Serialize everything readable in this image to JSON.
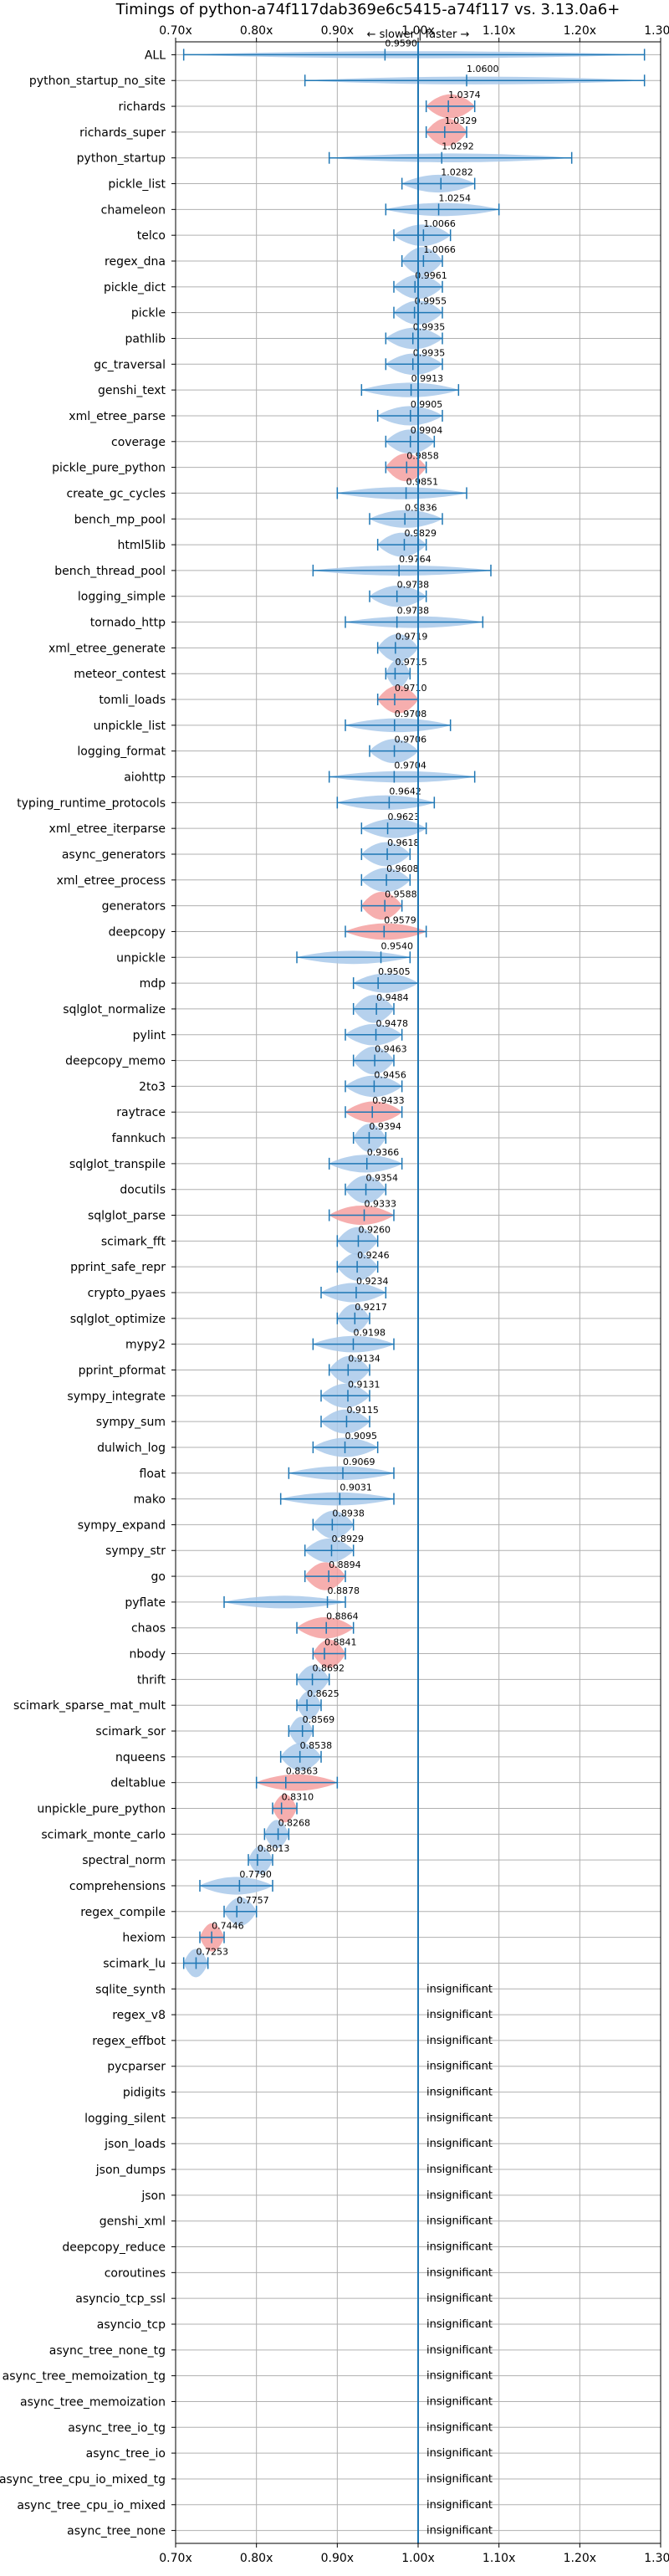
{
  "chart_data": {
    "type": "violin",
    "title": "Timings of python-a74f117dab369e6c5415-a74f117 vs. 3.13.0a6+",
    "direction_label": "← slower | faster →",
    "xlim": [
      0.7,
      1.3
    ],
    "xticks": [
      0.7,
      0.8,
      0.9,
      1.0,
      1.1,
      1.2,
      1.3
    ],
    "xtick_labels": [
      "0.70x",
      "0.80x",
      "0.90x",
      "1.00x",
      "1.10x",
      "1.20x",
      "1.30x"
    ],
    "reference_line": 1.0,
    "grid": true,
    "insignificant_label": "insignificant",
    "colors": {
      "significant": "#f4a0a0",
      "normal": "#a9c9ea",
      "whisker": "#1f77b4",
      "reference": "#1f77b4"
    },
    "benchmarks": [
      {
        "name": "ALL",
        "value": 0.959,
        "label": "0.9590",
        "min": 0.71,
        "max": 1.28,
        "hl": false
      },
      {
        "name": "python_startup_no_site",
        "value": 1.06,
        "label": "1.0600",
        "min": 0.86,
        "max": 1.28,
        "hl": false
      },
      {
        "name": "richards",
        "value": 1.0374,
        "label": "1.0374",
        "min": 1.01,
        "max": 1.07,
        "hl": true
      },
      {
        "name": "richards_super",
        "value": 1.0329,
        "label": "1.0329",
        "min": 1.01,
        "max": 1.06,
        "hl": true
      },
      {
        "name": "python_startup",
        "value": 1.0292,
        "label": "1.0292",
        "min": 0.89,
        "max": 1.19,
        "hl": false
      },
      {
        "name": "pickle_list",
        "value": 1.0282,
        "label": "1.0282",
        "min": 0.98,
        "max": 1.07,
        "hl": false
      },
      {
        "name": "chameleon",
        "value": 1.0254,
        "label": "1.0254",
        "min": 0.96,
        "max": 1.1,
        "hl": false
      },
      {
        "name": "telco",
        "value": 1.0066,
        "label": "1.0066",
        "min": 0.97,
        "max": 1.04,
        "hl": false
      },
      {
        "name": "regex_dna",
        "value": 1.0066,
        "label": "1.0066",
        "min": 0.98,
        "max": 1.03,
        "hl": false
      },
      {
        "name": "pickle_dict",
        "value": 0.9961,
        "label": "0.9961",
        "min": 0.97,
        "max": 1.03,
        "hl": false
      },
      {
        "name": "pickle",
        "value": 0.9955,
        "label": "0.9955",
        "min": 0.97,
        "max": 1.03,
        "hl": false
      },
      {
        "name": "pathlib",
        "value": 0.9935,
        "label": "0.9935",
        "min": 0.96,
        "max": 1.03,
        "hl": false
      },
      {
        "name": "gc_traversal",
        "value": 0.9935,
        "label": "0.9935",
        "min": 0.96,
        "max": 1.03,
        "hl": false
      },
      {
        "name": "genshi_text",
        "value": 0.9913,
        "label": "0.9913",
        "min": 0.93,
        "max": 1.05,
        "hl": false
      },
      {
        "name": "xml_etree_parse",
        "value": 0.9905,
        "label": "0.9905",
        "min": 0.95,
        "max": 1.03,
        "hl": false
      },
      {
        "name": "coverage",
        "value": 0.9904,
        "label": "0.9904",
        "min": 0.96,
        "max": 1.02,
        "hl": false
      },
      {
        "name": "pickle_pure_python",
        "value": 0.9858,
        "label": "0.9858",
        "min": 0.96,
        "max": 1.01,
        "hl": true
      },
      {
        "name": "create_gc_cycles",
        "value": 0.9851,
        "label": "0.9851",
        "min": 0.9,
        "max": 1.06,
        "hl": false
      },
      {
        "name": "bench_mp_pool",
        "value": 0.9836,
        "label": "0.9836",
        "min": 0.94,
        "max": 1.03,
        "hl": false
      },
      {
        "name": "html5lib",
        "value": 0.9829,
        "label": "0.9829",
        "min": 0.95,
        "max": 1.01,
        "hl": false
      },
      {
        "name": "bench_thread_pool",
        "value": 0.9764,
        "label": "0.9764",
        "min": 0.87,
        "max": 1.09,
        "hl": false
      },
      {
        "name": "logging_simple",
        "value": 0.9738,
        "label": "0.9738",
        "min": 0.94,
        "max": 1.01,
        "hl": false
      },
      {
        "name": "tornado_http",
        "value": 0.9738,
        "label": "0.9738",
        "min": 0.91,
        "max": 1.08,
        "hl": false
      },
      {
        "name": "xml_etree_generate",
        "value": 0.9719,
        "label": "0.9719",
        "min": 0.95,
        "max": 1.0,
        "hl": false
      },
      {
        "name": "meteor_contest",
        "value": 0.9715,
        "label": "0.9715",
        "min": 0.96,
        "max": 0.99,
        "hl": false
      },
      {
        "name": "tomli_loads",
        "value": 0.971,
        "label": "0.9710",
        "min": 0.95,
        "max": 1.0,
        "hl": true
      },
      {
        "name": "unpickle_list",
        "value": 0.9708,
        "label": "0.9708",
        "min": 0.91,
        "max": 1.04,
        "hl": false
      },
      {
        "name": "logging_format",
        "value": 0.9706,
        "label": "0.9706",
        "min": 0.94,
        "max": 1.0,
        "hl": false
      },
      {
        "name": "aiohttp",
        "value": 0.9704,
        "label": "0.9704",
        "min": 0.89,
        "max": 1.07,
        "hl": false
      },
      {
        "name": "typing_runtime_protocols",
        "value": 0.9642,
        "label": "0.9642",
        "min": 0.9,
        "max": 1.02,
        "hl": false
      },
      {
        "name": "xml_etree_iterparse",
        "value": 0.9623,
        "label": "0.9623",
        "min": 0.93,
        "max": 1.01,
        "hl": false
      },
      {
        "name": "async_generators",
        "value": 0.9618,
        "label": "0.9618",
        "min": 0.93,
        "max": 0.99,
        "hl": false
      },
      {
        "name": "xml_etree_process",
        "value": 0.9608,
        "label": "0.9608",
        "min": 0.93,
        "max": 0.99,
        "hl": false
      },
      {
        "name": "generators",
        "value": 0.9588,
        "label": "0.9588",
        "min": 0.93,
        "max": 0.98,
        "hl": true
      },
      {
        "name": "deepcopy",
        "value": 0.9579,
        "label": "0.9579",
        "min": 0.91,
        "max": 1.01,
        "hl": true
      },
      {
        "name": "unpickle",
        "value": 0.954,
        "label": "0.9540",
        "min": 0.85,
        "max": 0.99,
        "hl": false
      },
      {
        "name": "mdp",
        "value": 0.9505,
        "label": "0.9505",
        "min": 0.92,
        "max": 1.0,
        "hl": false
      },
      {
        "name": "sqlglot_normalize",
        "value": 0.9484,
        "label": "0.9484",
        "min": 0.92,
        "max": 0.97,
        "hl": false
      },
      {
        "name": "pylint",
        "value": 0.9478,
        "label": "0.9478",
        "min": 0.91,
        "max": 0.98,
        "hl": false
      },
      {
        "name": "deepcopy_memo",
        "value": 0.9463,
        "label": "0.9463",
        "min": 0.92,
        "max": 0.97,
        "hl": false
      },
      {
        "name": "2to3",
        "value": 0.9456,
        "label": "0.9456",
        "min": 0.91,
        "max": 0.98,
        "hl": false
      },
      {
        "name": "raytrace",
        "value": 0.9433,
        "label": "0.9433",
        "min": 0.91,
        "max": 0.98,
        "hl": true
      },
      {
        "name": "fannkuch",
        "value": 0.9394,
        "label": "0.9394",
        "min": 0.92,
        "max": 0.96,
        "hl": false
      },
      {
        "name": "sqlglot_transpile",
        "value": 0.9366,
        "label": "0.9366",
        "min": 0.89,
        "max": 0.98,
        "hl": false
      },
      {
        "name": "docutils",
        "value": 0.9354,
        "label": "0.9354",
        "min": 0.91,
        "max": 0.96,
        "hl": false
      },
      {
        "name": "sqlglot_parse",
        "value": 0.9333,
        "label": "0.9333",
        "min": 0.89,
        "max": 0.97,
        "hl": true
      },
      {
        "name": "scimark_fft",
        "value": 0.926,
        "label": "0.9260",
        "min": 0.9,
        "max": 0.95,
        "hl": false
      },
      {
        "name": "pprint_safe_repr",
        "value": 0.9246,
        "label": "0.9246",
        "min": 0.9,
        "max": 0.95,
        "hl": false
      },
      {
        "name": "crypto_pyaes",
        "value": 0.9234,
        "label": "0.9234",
        "min": 0.88,
        "max": 0.96,
        "hl": false
      },
      {
        "name": "sqlglot_optimize",
        "value": 0.9217,
        "label": "0.9217",
        "min": 0.9,
        "max": 0.94,
        "hl": false
      },
      {
        "name": "mypy2",
        "value": 0.9198,
        "label": "0.9198",
        "min": 0.87,
        "max": 0.97,
        "hl": false
      },
      {
        "name": "pprint_pformat",
        "value": 0.9134,
        "label": "0.9134",
        "min": 0.89,
        "max": 0.94,
        "hl": false
      },
      {
        "name": "sympy_integrate",
        "value": 0.9131,
        "label": "0.9131",
        "min": 0.88,
        "max": 0.94,
        "hl": false
      },
      {
        "name": "sympy_sum",
        "value": 0.9115,
        "label": "0.9115",
        "min": 0.88,
        "max": 0.94,
        "hl": false
      },
      {
        "name": "dulwich_log",
        "value": 0.9095,
        "label": "0.9095",
        "min": 0.87,
        "max": 0.95,
        "hl": false
      },
      {
        "name": "float",
        "value": 0.9069,
        "label": "0.9069",
        "min": 0.84,
        "max": 0.97,
        "hl": false
      },
      {
        "name": "mako",
        "value": 0.9031,
        "label": "0.9031",
        "min": 0.83,
        "max": 0.97,
        "hl": false
      },
      {
        "name": "sympy_expand",
        "value": 0.8938,
        "label": "0.8938",
        "min": 0.87,
        "max": 0.92,
        "hl": false
      },
      {
        "name": "sympy_str",
        "value": 0.8929,
        "label": "0.8929",
        "min": 0.86,
        "max": 0.92,
        "hl": false
      },
      {
        "name": "go",
        "value": 0.8894,
        "label": "0.8894",
        "min": 0.86,
        "max": 0.91,
        "hl": true
      },
      {
        "name": "pyflate",
        "value": 0.8878,
        "label": "0.8878",
        "min": 0.76,
        "max": 0.91,
        "hl": false
      },
      {
        "name": "chaos",
        "value": 0.8864,
        "label": "0.8864",
        "min": 0.85,
        "max": 0.92,
        "hl": true
      },
      {
        "name": "nbody",
        "value": 0.8841,
        "label": "0.8841",
        "min": 0.87,
        "max": 0.91,
        "hl": true
      },
      {
        "name": "thrift",
        "value": 0.8692,
        "label": "0.8692",
        "min": 0.85,
        "max": 0.89,
        "hl": false
      },
      {
        "name": "scimark_sparse_mat_mult",
        "value": 0.8625,
        "label": "0.8625",
        "min": 0.85,
        "max": 0.88,
        "hl": false
      },
      {
        "name": "scimark_sor",
        "value": 0.8569,
        "label": "0.8569",
        "min": 0.84,
        "max": 0.87,
        "hl": false
      },
      {
        "name": "nqueens",
        "value": 0.8538,
        "label": "0.8538",
        "min": 0.83,
        "max": 0.88,
        "hl": false
      },
      {
        "name": "deltablue",
        "value": 0.8363,
        "label": "0.8363",
        "min": 0.8,
        "max": 0.9,
        "hl": true
      },
      {
        "name": "unpickle_pure_python",
        "value": 0.831,
        "label": "0.8310",
        "min": 0.82,
        "max": 0.85,
        "hl": true
      },
      {
        "name": "scimark_monte_carlo",
        "value": 0.8268,
        "label": "0.8268",
        "min": 0.81,
        "max": 0.84,
        "hl": false
      },
      {
        "name": "spectral_norm",
        "value": 0.8013,
        "label": "0.8013",
        "min": 0.79,
        "max": 0.82,
        "hl": false
      },
      {
        "name": "comprehensions",
        "value": 0.779,
        "label": "0.7790",
        "min": 0.73,
        "max": 0.82,
        "hl": false
      },
      {
        "name": "regex_compile",
        "value": 0.7757,
        "label": "0.7757",
        "min": 0.76,
        "max": 0.8,
        "hl": false
      },
      {
        "name": "hexiom",
        "value": 0.7446,
        "label": "0.7446",
        "min": 0.73,
        "max": 0.76,
        "hl": true
      },
      {
        "name": "scimark_lu",
        "value": 0.7253,
        "label": "0.7253",
        "min": 0.71,
        "max": 0.74,
        "hl": false
      },
      {
        "name": "sqlite_synth",
        "value": null,
        "label": "insignificant"
      },
      {
        "name": "regex_v8",
        "value": null,
        "label": "insignificant"
      },
      {
        "name": "regex_effbot",
        "value": null,
        "label": "insignificant"
      },
      {
        "name": "pycparser",
        "value": null,
        "label": "insignificant"
      },
      {
        "name": "pidigits",
        "value": null,
        "label": "insignificant"
      },
      {
        "name": "logging_silent",
        "value": null,
        "label": "insignificant"
      },
      {
        "name": "json_loads",
        "value": null,
        "label": "insignificant"
      },
      {
        "name": "json_dumps",
        "value": null,
        "label": "insignificant"
      },
      {
        "name": "json",
        "value": null,
        "label": "insignificant"
      },
      {
        "name": "genshi_xml",
        "value": null,
        "label": "insignificant"
      },
      {
        "name": "deepcopy_reduce",
        "value": null,
        "label": "insignificant"
      },
      {
        "name": "coroutines",
        "value": null,
        "label": "insignificant"
      },
      {
        "name": "asyncio_tcp_ssl",
        "value": null,
        "label": "insignificant"
      },
      {
        "name": "asyncio_tcp",
        "value": null,
        "label": "insignificant"
      },
      {
        "name": "async_tree_none_tg",
        "value": null,
        "label": "insignificant"
      },
      {
        "name": "async_tree_memoization_tg",
        "value": null,
        "label": "insignificant"
      },
      {
        "name": "async_tree_memoization",
        "value": null,
        "label": "insignificant"
      },
      {
        "name": "async_tree_io_tg",
        "value": null,
        "label": "insignificant"
      },
      {
        "name": "async_tree_io",
        "value": null,
        "label": "insignificant"
      },
      {
        "name": "async_tree_cpu_io_mixed_tg",
        "value": null,
        "label": "insignificant"
      },
      {
        "name": "async_tree_cpu_io_mixed",
        "value": null,
        "label": "insignificant"
      },
      {
        "name": "async_tree_none",
        "value": null,
        "label": "insignificant"
      }
    ]
  }
}
